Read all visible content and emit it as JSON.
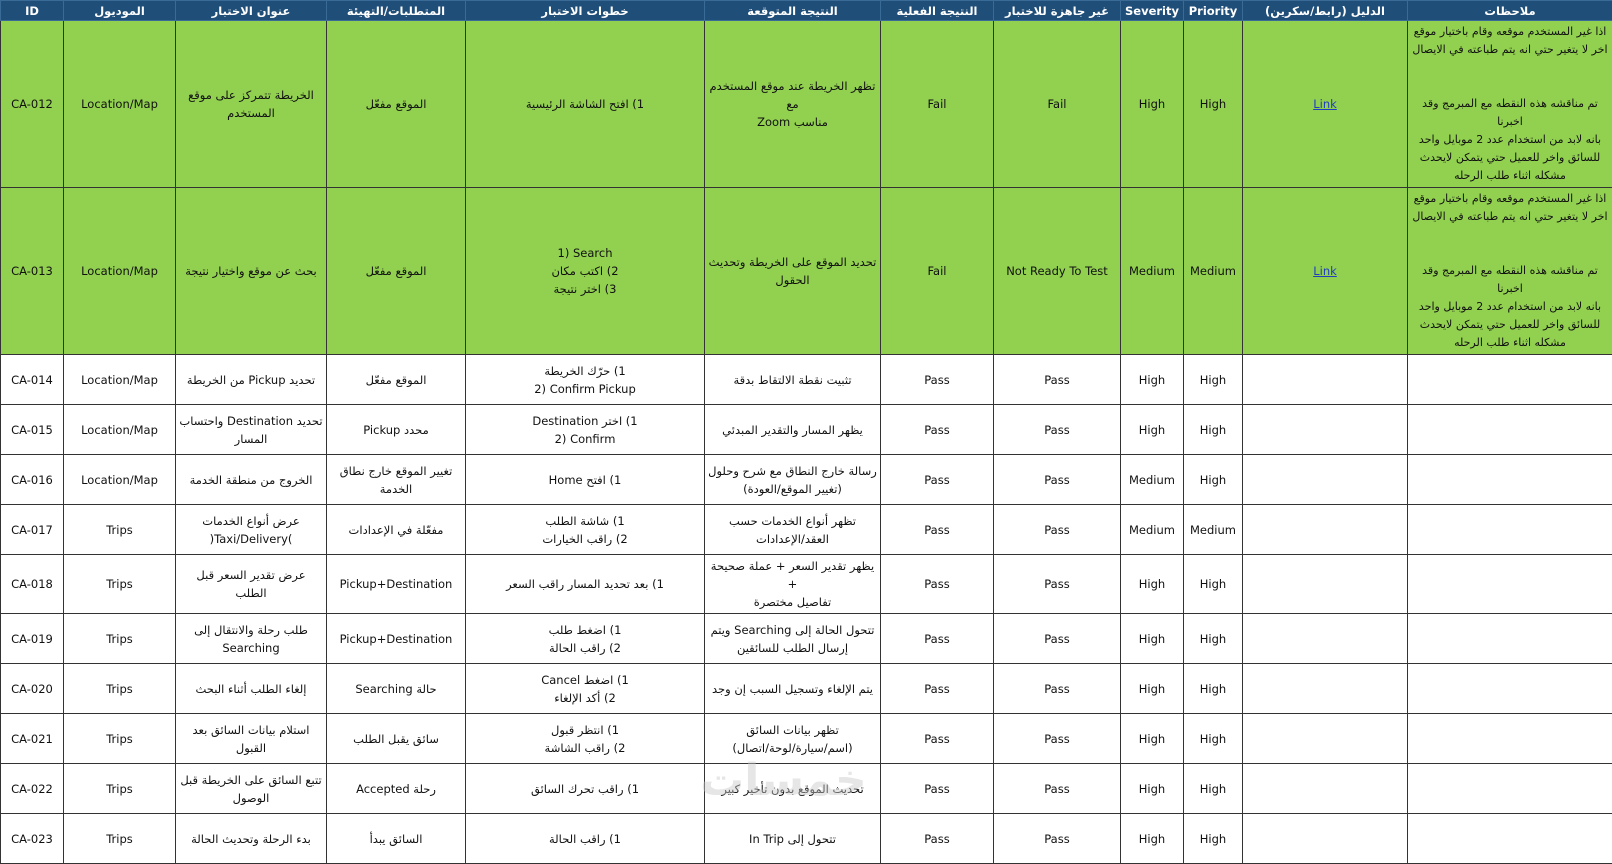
{
  "headers": [
    "ID",
    "الموديول",
    "عنوان الاختبار",
    "المتطلبات/التهيئة",
    "خطوات الاختبار",
    "النتيجة المتوقعة",
    "النتيجة الفعلية",
    "غير جاهزة للاختبار",
    "Severity",
    "Priority",
    "الدليل (رابط/سكرين)",
    "ملاحظات"
  ],
  "colors": {
    "header_bg": "#1f4e79",
    "fail_row_bg": "#92d050",
    "link": "#1f3fbf"
  },
  "rows": [
    {
      "id": "CA-012",
      "module": "Location/Map",
      "title": "الخريطة تتمركز على موقع\nالمستخدم",
      "pre": "الموقع مفعّل",
      "steps": "1) افتح الشاشة الرئيسية",
      "expected": "تظهر الخريطة عند موقع المستخدم مع\nZoom مناسب",
      "actual": "Fail",
      "not_ready": "Fail",
      "severity": "High",
      "priority": "High",
      "evidence": "Link",
      "notes": "اذا غير المستخدم موقعه وقام باختيار موقع\nاخر لا يتغير حتي انه يتم طباعته في الايصال\n\n\nتم مناقشه هذه النقطه مع المبرمج وقد اخبرنا\nبانه لابد من استخدام عدد 2 موبايل واحد\nللسائق واخر للعميل حتي يتمكن لايحدث\nمشكله اثناء طلب الرحله"
    },
    {
      "id": "CA-013",
      "module": "Location/Map",
      "title": "بحث عن موقع واختيار نتيجة",
      "pre": "الموقع مفعّل",
      "steps": "1) Search\n2) اكتب مكان\n3) اختر نتيجة",
      "expected": "تحديد الموقع على الخريطة وتحديث\nالحقول",
      "actual": "Fail",
      "not_ready": "Not Ready To Test",
      "severity": "Medium",
      "priority": "Medium",
      "evidence": "Link",
      "notes": "اذا غير المستخدم موقعه وقام باختيار موقع\nاخر لا يتغير حتي انه يتم طباعته في الايصال\n\n\nتم مناقشه هذه النقطه مع المبرمج وقد اخبرنا\nبانه لابد من استخدام عدد 2 موبايل واحد\nللسائق واخر للعميل حتي يتمكن لايحدث\nمشكله اثناء طلب الرحله"
    },
    {
      "id": "CA-014",
      "module": "Location/Map",
      "title": "تحديد Pickup من الخريطة",
      "pre": "الموقع مفعّل",
      "steps": "1) حرّك الخريطة\n2) Confirm Pickup",
      "expected": "تثبيت نقطة الالتقاط بدقة",
      "actual": "Pass",
      "not_ready": "Pass",
      "severity": "High",
      "priority": "High",
      "evidence": "",
      "notes": ""
    },
    {
      "id": "CA-015",
      "module": "Location/Map",
      "title": "تحديد Destination واحتساب\nالمسار",
      "pre": "Pickup محدد",
      "steps": "1) اختر Destination\n2) Confirm",
      "expected": "يظهر المسار والتقدير المبدئي",
      "actual": "Pass",
      "not_ready": "Pass",
      "severity": "High",
      "priority": "High",
      "evidence": "",
      "notes": ""
    },
    {
      "id": "CA-016",
      "module": "Location/Map",
      "title": "الخروج من منطقة الخدمة",
      "pre": "تغيير الموقع خارج نطاق الخدمة",
      "steps": "1) افتح Home",
      "expected": "رسالة خارج النطاق مع شرح وحلول\n(تغيير الموقع/العودة)",
      "actual": "Pass",
      "not_ready": "Pass",
      "severity": "Medium",
      "priority": "High",
      "evidence": "",
      "notes": ""
    },
    {
      "id": "CA-017",
      "module": "Trips",
      "title": "عرض أنواع الخدمات\n(Taxi/Delivery)",
      "pre": "مفعّلة في الإعدادات",
      "steps": "1) شاشة الطلب\n2) راقب الخيارات",
      "expected": "تظهر أنواع الخدمات حسب\nالعقد/الإعدادات",
      "actual": "Pass",
      "not_ready": "Pass",
      "severity": "Medium",
      "priority": "Medium",
      "evidence": "",
      "notes": ""
    },
    {
      "id": "CA-018",
      "module": "Trips",
      "title": "عرض تقدير السعر قبل الطلب",
      "pre": "Pickup+Destination",
      "steps": "1) بعد تحديد المسار راقب السعر",
      "expected": "يظهر تقدير السعر + عملة صحيحة +\nتفاصيل مختصرة",
      "actual": "Pass",
      "not_ready": "Pass",
      "severity": "High",
      "priority": "High",
      "evidence": "",
      "notes": ""
    },
    {
      "id": "CA-019",
      "module": "Trips",
      "title": "طلب رحلة والانتقال إلى\nSearching",
      "pre": "Pickup+Destination",
      "steps": "1) اضغط طلب\n2) راقب الحالة",
      "expected": "تتحول الحالة إلى Searching ويتم\nإرسال الطلب للسائقين",
      "actual": "Pass",
      "not_ready": "Pass",
      "severity": "High",
      "priority": "High",
      "evidence": "",
      "notes": ""
    },
    {
      "id": "CA-020",
      "module": "Trips",
      "title": "إلغاء الطلب أثناء البحث",
      "pre": "حالة Searching",
      "steps": "1) اضغط Cancel\n2) أكد الإلغاء",
      "expected": "يتم الإلغاء وتسجيل السبب إن وجد",
      "actual": "Pass",
      "not_ready": "Pass",
      "severity": "High",
      "priority": "High",
      "evidence": "",
      "notes": ""
    },
    {
      "id": "CA-021",
      "module": "Trips",
      "title": "استلام بيانات السائق بعد القبول",
      "pre": "سائق يقبل الطلب",
      "steps": "1) انتظر قبول\n2) راقب الشاشة",
      "expected": "تظهر بيانات السائق\n(اسم/سيارة/لوحة/اتصال)",
      "actual": "Pass",
      "not_ready": "Pass",
      "severity": "High",
      "priority": "High",
      "evidence": "",
      "notes": ""
    },
    {
      "id": "CA-022",
      "module": "Trips",
      "title": "تتبع السائق على الخريطة قبل\nالوصول",
      "pre": "رحلة Accepted",
      "steps": "1) راقب تحرك السائق",
      "expected": "تحديث الموقع بدون تأخير كبير",
      "actual": "Pass",
      "not_ready": "Pass",
      "severity": "High",
      "priority": "High",
      "evidence": "",
      "notes": ""
    },
    {
      "id": "CA-023",
      "module": "Trips",
      "title": "بدء الرحلة وتحديث الحالة",
      "pre": "السائق يبدأ",
      "steps": "1) راقب الحالة",
      "expected": "تتحول إلى In Trip",
      "actual": "Pass",
      "not_ready": "Pass",
      "severity": "High",
      "priority": "High",
      "evidence": "",
      "notes": ""
    }
  ],
  "watermark": "خمسات"
}
